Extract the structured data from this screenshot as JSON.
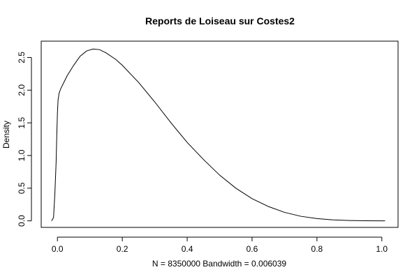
{
  "chart_data": {
    "type": "line",
    "title": "Reports de Loiseau sur Costes2",
    "xlabel": "N = 8350000   Bandwidth = 0.006039",
    "ylabel": "Density",
    "xlim": [
      -0.05,
      1.05
    ],
    "ylim": [
      -0.1,
      2.75
    ],
    "x_ticks": [
      0.0,
      0.2,
      0.4,
      0.6,
      0.8,
      1.0
    ],
    "x_tick_labels": [
      "0.0",
      "0.2",
      "0.4",
      "0.6",
      "0.8",
      "1.0"
    ],
    "y_ticks": [
      0.0,
      0.5,
      1.0,
      1.5,
      2.0,
      2.5
    ],
    "y_tick_labels": [
      "0.0",
      "0.5",
      "1.0",
      "1.5",
      "2.0",
      "2.5"
    ],
    "grid": false,
    "series": [
      {
        "x": [
          -0.018,
          -0.012,
          -0.008,
          -0.004,
          -0.002,
          0.0,
          0.002,
          0.005,
          0.01,
          0.02,
          0.03,
          0.05,
          0.07,
          0.09,
          0.11,
          0.13,
          0.15,
          0.18,
          0.2,
          0.25,
          0.3,
          0.35,
          0.4,
          0.45,
          0.5,
          0.55,
          0.6,
          0.65,
          0.7,
          0.75,
          0.8,
          0.85,
          0.9,
          0.95,
          1.0,
          1.01
        ],
        "y": [
          0.0,
          0.05,
          0.4,
          0.9,
          1.3,
          1.65,
          1.85,
          1.95,
          2.02,
          2.12,
          2.22,
          2.38,
          2.52,
          2.6,
          2.63,
          2.62,
          2.57,
          2.47,
          2.38,
          2.12,
          1.82,
          1.5,
          1.2,
          0.94,
          0.7,
          0.5,
          0.34,
          0.22,
          0.13,
          0.07,
          0.035,
          0.015,
          0.006,
          0.002,
          0.0,
          0.0
        ]
      }
    ]
  }
}
